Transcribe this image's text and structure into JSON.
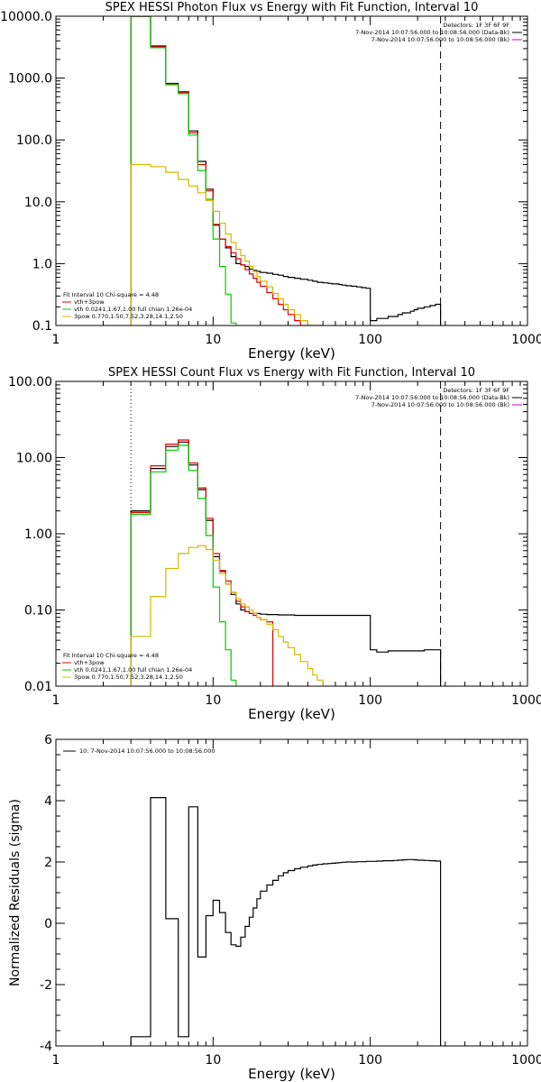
{
  "chart_data": [
    {
      "type": "line",
      "title": "SPEX HESSI Photon Flux vs Energy with Fit Function, Interval 10",
      "xlabel": "Energy (keV)",
      "ylabel": "",
      "x_scale": "log",
      "y_scale": "log",
      "xlim": [
        1,
        1000
      ],
      "ylim": [
        0.1,
        10000
      ],
      "x_ticks": [
        1,
        10,
        100,
        1000
      ],
      "x_tick_labels": [
        "1",
        "10",
        "100",
        "1000"
      ],
      "y_ticks": [
        0.1,
        1,
        10,
        100,
        1000,
        10000
      ],
      "y_tick_labels": [
        "0.1",
        "1.0",
        "10.0",
        "100.0",
        "1000.0",
        "10000.0"
      ],
      "vlines": [
        {
          "x": 3,
          "style": "dotted",
          "color": "#000000"
        },
        {
          "x": 280,
          "style": "dashed",
          "color": "#000000"
        }
      ],
      "legend_top_right": [
        {
          "text": "Detectors: 1F 3F 6F 9F",
          "color": "#000000"
        },
        {
          "text": "7-Nov-2014 10:07:56.000 to 10:08:56.000 (Data-Bk)",
          "color": "#000000"
        },
        {
          "text": "7-Nov-2014 10:07:56.000 to 10:08:56.000 (Bk)",
          "color": "#cc00cc"
        }
      ],
      "legend_bottom_left": [
        {
          "text": "Fit Interval 10   Chi-square = 4.48",
          "color": "#000000"
        },
        {
          "text": "vth+3pow",
          "color": "#e00000"
        },
        {
          "text": "vth 0.0241,1.67,1.00  full chian 1.26e-04",
          "color": "#00cc00"
        },
        {
          "text": "3pow 0.770,1.50,7.52,3.28,14.1,2.50",
          "color": "#d4b800"
        }
      ],
      "series": [
        {
          "name": "Data-Bk",
          "color": "#000000",
          "edges": [
            3,
            3.5,
            4,
            4.5,
            5,
            5.5,
            6,
            6.5,
            7,
            7.5,
            8,
            8.5,
            9,
            9.5,
            10,
            11,
            12,
            13,
            14,
            15,
            16,
            17,
            18,
            19,
            20,
            22,
            24,
            26,
            28,
            30,
            33,
            36,
            40,
            43,
            46,
            50,
            54,
            57,
            60,
            63,
            66,
            70,
            76,
            82,
            88,
            94,
            100,
            110,
            120,
            130,
            140,
            150,
            160,
            170,
            180,
            190,
            200,
            220,
            240,
            260,
            280
          ],
          "values": [
            10000,
            10000,
            3300,
            3300,
            820,
            820,
            600,
            600,
            140,
            140,
            45,
            45,
            16,
            16,
            4.2,
            2.5,
            1.8,
            1.3,
            1.0,
            0.95,
            0.9,
            0.82,
            0.78,
            0.75,
            0.72,
            0.7,
            0.67,
            0.65,
            0.62,
            0.6,
            0.58,
            0.56,
            0.54,
            0.52,
            0.5,
            0.49,
            0.48,
            0.47,
            0.47,
            0.46,
            0.45,
            0.44,
            0.43,
            0.42,
            0.41,
            0.4,
            0.12,
            0.13,
            0.13,
            0.14,
            0.14,
            0.15,
            0.16,
            0.16,
            0.17,
            0.18,
            0.19,
            0.2,
            0.21,
            0.22
          ]
        },
        {
          "name": "vth+3pow",
          "color": "#e00000",
          "edges": [
            3,
            4,
            5,
            6,
            7,
            8,
            9,
            10,
            11,
            12,
            13,
            14,
            15,
            16,
            17,
            18,
            19,
            20,
            22,
            24,
            26,
            28,
            30,
            33,
            36,
            40,
            43,
            46,
            50
          ],
          "values": [
            10000,
            3200,
            800,
            580,
            130,
            40,
            15,
            4.3,
            2.5,
            1.9,
            1.5,
            1.2,
            0.95,
            0.8,
            0.68,
            0.58,
            0.5,
            0.43,
            0.34,
            0.27,
            0.22,
            0.18,
            0.15,
            0.12,
            0.1,
            0.08,
            0.07,
            0.06
          ]
        },
        {
          "name": "vth",
          "color": "#00cc00",
          "edges": [
            3,
            4,
            5,
            6,
            7,
            8,
            9,
            10,
            11,
            12,
            13,
            14
          ],
          "values": [
            10000,
            3100,
            780,
            560,
            120,
            32,
            11,
            2.5,
            0.9,
            0.32,
            0.11
          ]
        },
        {
          "name": "3pow",
          "color": "#d4b800",
          "edges": [
            3,
            4,
            5,
            6,
            7,
            8,
            9,
            10,
            11,
            12,
            13,
            14,
            15,
            16,
            17,
            18,
            19,
            20,
            22,
            24,
            26,
            28,
            30,
            33,
            36,
            40,
            43,
            46,
            50
          ],
          "values": [
            40,
            37,
            30,
            23,
            18,
            14,
            10.5,
            7.0,
            4.5,
            3.0,
            2.2,
            1.7,
            1.35,
            1.1,
            0.9,
            0.75,
            0.62,
            0.52,
            0.42,
            0.33,
            0.27,
            0.22,
            0.18,
            0.15,
            0.12,
            0.1,
            0.085,
            0.075
          ]
        }
      ]
    },
    {
      "type": "line",
      "title": "SPEX HESSI Count Flux vs Energy with Fit Function, Interval 10",
      "xlabel": "Energy (keV)",
      "ylabel": "",
      "x_scale": "log",
      "y_scale": "log",
      "xlim": [
        1,
        1000
      ],
      "ylim": [
        0.01,
        100
      ],
      "x_ticks": [
        1,
        10,
        100,
        1000
      ],
      "x_tick_labels": [
        "1",
        "10",
        "100",
        "1000"
      ],
      "y_ticks": [
        0.01,
        0.1,
        1,
        10,
        100
      ],
      "y_tick_labels": [
        "0.01",
        "0.10",
        "1.00",
        "10.00",
        "100.00"
      ],
      "vlines": [
        {
          "x": 3,
          "style": "dotted",
          "color": "#000000"
        },
        {
          "x": 280,
          "style": "dashed",
          "color": "#000000"
        }
      ],
      "legend_top_right": [
        {
          "text": "Detectors: 1F 3F 6F 9F",
          "color": "#000000"
        },
        {
          "text": "7-Nov-2014 10:07:56.000 to 10:08:56.000 (Data-Bk)",
          "color": "#000000"
        },
        {
          "text": "7-Nov-2014 10:07:56.000 to 10:08:56.000 (Bk)",
          "color": "#cc00cc"
        }
      ],
      "legend_bottom_left": [
        {
          "text": "Fit Interval 10   Chi-square = 4.48",
          "color": "#000000"
        },
        {
          "text": "vth+3pow",
          "color": "#e00000"
        },
        {
          "text": "vth 0.0241,1.67,1.00  full chian 1.26e-04",
          "color": "#00cc00"
        },
        {
          "text": "3pow 0.770,1.50,7.52,3.28,14.1,2.50",
          "color": "#d4b800"
        }
      ],
      "series": [
        {
          "name": "Data-Bk",
          "color": "#000000",
          "edges": [
            3,
            4,
            5,
            6,
            7,
            8,
            9,
            10,
            11,
            12,
            13,
            14,
            15,
            16,
            17,
            18,
            19,
            20,
            22,
            24,
            26,
            28,
            30,
            33,
            36,
            40,
            43,
            46,
            50,
            54,
            57,
            60,
            63,
            66,
            70,
            76,
            82,
            88,
            94,
            100,
            110,
            120,
            130,
            140,
            150,
            160,
            170,
            180,
            190,
            200,
            220,
            240,
            260,
            280
          ],
          "values": [
            2.0,
            7.2,
            14.0,
            16.0,
            8.0,
            3.8,
            1.5,
            0.5,
            0.32,
            0.22,
            0.16,
            0.12,
            0.1,
            0.095,
            0.09,
            0.09,
            0.09,
            0.088,
            0.087,
            0.087,
            0.086,
            0.086,
            0.086,
            0.085,
            0.085,
            0.085,
            0.085,
            0.085,
            0.085,
            0.085,
            0.085,
            0.085,
            0.085,
            0.085,
            0.085,
            0.085,
            0.085,
            0.085,
            0.085,
            0.03,
            0.028,
            0.028,
            0.029,
            0.029,
            0.029,
            0.029,
            0.029,
            0.029,
            0.029,
            0.029,
            0.03,
            0.03,
            0.03
          ]
        },
        {
          "name": "vth+3pow",
          "color": "#e00000",
          "edges": [
            3,
            4,
            5,
            6,
            7,
            8,
            9,
            10,
            11,
            12,
            13,
            14,
            15,
            16,
            17,
            18,
            19,
            20,
            22,
            24
          ],
          "values": [
            1.9,
            7.8,
            15.0,
            17.0,
            8.5,
            4.0,
            1.6,
            0.55,
            0.33,
            0.24,
            0.17,
            0.13,
            0.11,
            0.095,
            0.09,
            0.085,
            0.08,
            0.075,
            0.07
          ]
        },
        {
          "name": "vth",
          "color": "#00cc00",
          "edges": [
            3,
            4,
            5,
            6,
            7,
            8,
            9,
            10,
            11,
            12,
            13,
            14
          ],
          "values": [
            1.8,
            6.5,
            12.5,
            14.5,
            6.8,
            2.9,
            0.95,
            0.2,
            0.07,
            0.03,
            0.012
          ]
        },
        {
          "name": "3pow",
          "color": "#d4b800",
          "edges": [
            3,
            4,
            5,
            6,
            7,
            8,
            9,
            10,
            11,
            12,
            13,
            14,
            15,
            16,
            17,
            18,
            19,
            20,
            22,
            24,
            26,
            28,
            30,
            33,
            36,
            40,
            43,
            46,
            50,
            54
          ],
          "values": [
            0.045,
            0.15,
            0.35,
            0.55,
            0.66,
            0.7,
            0.62,
            0.45,
            0.3,
            0.22,
            0.17,
            0.14,
            0.12,
            0.11,
            0.1,
            0.09,
            0.08,
            0.075,
            0.065,
            0.055,
            0.045,
            0.038,
            0.032,
            0.026,
            0.021,
            0.017,
            0.014,
            0.012,
            0.01
          ]
        }
      ]
    },
    {
      "type": "line",
      "title": "",
      "xlabel": "Energy (keV)",
      "ylabel": "Normalized Residuals (sigma)",
      "x_scale": "log",
      "y_scale": "linear",
      "xlim": [
        1,
        1000
      ],
      "ylim": [
        -4,
        6
      ],
      "x_ticks": [
        1,
        10,
        100,
        1000
      ],
      "x_tick_labels": [
        "1",
        "10",
        "100",
        "1000"
      ],
      "y_ticks": [
        -4,
        -2,
        0,
        2,
        4,
        6
      ],
      "y_tick_labels": [
        "-4",
        "-2",
        "0",
        "2",
        "4",
        "6"
      ],
      "vlines": [],
      "legend_top_left": [
        {
          "text": "10:  7-Nov-2014 10:07:56.000 to 10:08:56.000",
          "color": "#000000"
        }
      ],
      "series": [
        {
          "name": "residuals",
          "color": "#000000",
          "edges": [
            3,
            4,
            5,
            6,
            7,
            8,
            9,
            10,
            11,
            12,
            13,
            14,
            15,
            16,
            17,
            18,
            19,
            20,
            22,
            24,
            26,
            28,
            30,
            33,
            36,
            40,
            43,
            46,
            50,
            54,
            57,
            60,
            63,
            66,
            70,
            76,
            82,
            88,
            94,
            100,
            110,
            120,
            130,
            140,
            150,
            160,
            170,
            180,
            190,
            200,
            220,
            240,
            260,
            280
          ],
          "values": [
            -3.7,
            4.1,
            0.15,
            -3.7,
            3.8,
            -1.1,
            0.25,
            0.75,
            0.35,
            -0.3,
            -0.7,
            -0.75,
            -0.45,
            -0.1,
            0.2,
            0.5,
            0.8,
            1.05,
            1.25,
            1.4,
            1.55,
            1.65,
            1.72,
            1.78,
            1.83,
            1.87,
            1.9,
            1.92,
            1.94,
            1.95,
            1.96,
            1.97,
            1.98,
            1.99,
            2.0,
            2.0,
            2.01,
            2.01,
            2.02,
            2.02,
            2.03,
            2.04,
            2.04,
            2.05,
            2.06,
            2.07,
            2.08,
            2.08,
            2.07,
            2.06,
            2.05,
            2.04,
            2.03
          ]
        }
      ]
    }
  ]
}
